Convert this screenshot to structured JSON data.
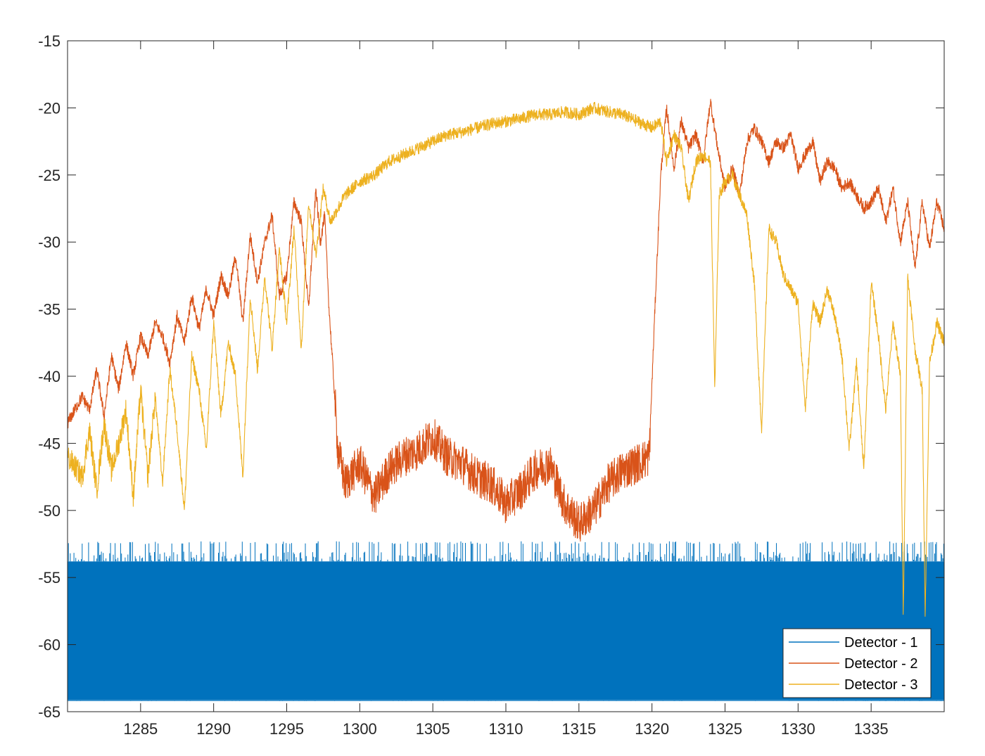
{
  "chart_data": {
    "type": "line",
    "title": "",
    "xlabel": "",
    "ylabel": "",
    "xlim": [
      1280,
      1340
    ],
    "ylim": [
      -65,
      -15
    ],
    "xticks": [
      1285,
      1290,
      1295,
      1300,
      1305,
      1310,
      1315,
      1320,
      1325,
      1330,
      1335
    ],
    "yticks": [
      -15,
      -20,
      -25,
      -30,
      -35,
      -40,
      -45,
      -50,
      -55,
      -60,
      -65
    ],
    "grid": false,
    "legend": {
      "position": "bottom-right",
      "entries": [
        "Detector - 1",
        "Detector - 2",
        "Detector - 3"
      ]
    },
    "series": [
      {
        "name": "Detector - 1",
        "color": "#0072BD",
        "style": "noise-band",
        "band_low": -64.2,
        "band_high": -53.8,
        "spike_high": -52.3,
        "x": [
          1280,
          1340
        ],
        "y": [
          -59,
          -59
        ]
      },
      {
        "name": "Detector - 2",
        "color": "#D95319",
        "x": [
          1280.0,
          1281.0,
          1281.5,
          1282.0,
          1282.5,
          1283.0,
          1283.5,
          1284.0,
          1284.5,
          1285.0,
          1285.5,
          1286.0,
          1286.5,
          1287.0,
          1287.5,
          1288.0,
          1288.5,
          1289.0,
          1289.5,
          1290.0,
          1290.5,
          1291.0,
          1291.5,
          1292.0,
          1292.5,
          1293.0,
          1293.5,
          1294.0,
          1294.5,
          1295.0,
          1295.5,
          1296.0,
          1296.5,
          1297.0,
          1297.3,
          1297.6,
          1297.9,
          1298.2,
          1298.5,
          1299.0,
          1300.0,
          1301.0,
          1302.0,
          1303.0,
          1304.0,
          1305.0,
          1306.0,
          1307.0,
          1308.0,
          1309.0,
          1310.0,
          1311.0,
          1312.0,
          1313.0,
          1314.0,
          1315.0,
          1316.0,
          1317.0,
          1318.0,
          1319.0,
          1319.8,
          1320.2,
          1320.6,
          1321.0,
          1321.5,
          1322.0,
          1322.5,
          1323.0,
          1323.5,
          1324.0,
          1324.5,
          1325.0,
          1325.5,
          1326.0,
          1326.5,
          1327.0,
          1327.5,
          1328.0,
          1328.5,
          1329.0,
          1329.5,
          1330.0,
          1330.5,
          1331.0,
          1331.5,
          1332.0,
          1332.5,
          1333.0,
          1333.5,
          1334.0,
          1334.5,
          1335.0,
          1335.5,
          1336.0,
          1336.5,
          1337.0,
          1337.5,
          1338.0,
          1338.5,
          1339.0,
          1339.5,
          1340.0
        ],
        "y": [
          -43.5,
          -41.5,
          -42.5,
          -39.5,
          -43.0,
          -38.5,
          -41.0,
          -37.5,
          -40.0,
          -37.0,
          -38.5,
          -36.0,
          -37.0,
          -39.0,
          -35.5,
          -37.5,
          -34.0,
          -36.5,
          -33.5,
          -35.5,
          -32.5,
          -34.0,
          -31.0,
          -36.0,
          -29.5,
          -33.0,
          -30.0,
          -28.0,
          -34.0,
          -32.5,
          -27.0,
          -28.5,
          -35.0,
          -26.0,
          -30.0,
          -28.0,
          -35.0,
          -40.0,
          -45.5,
          -48.0,
          -46.5,
          -49.0,
          -47.0,
          -46.0,
          -45.5,
          -44.5,
          -46.0,
          -46.5,
          -47.5,
          -48.0,
          -49.5,
          -48.5,
          -47.0,
          -46.5,
          -49.5,
          -51.0,
          -50.0,
          -48.0,
          -47.0,
          -46.5,
          -46.0,
          -35.0,
          -25.0,
          -20.0,
          -24.5,
          -21.0,
          -23.0,
          -22.0,
          -24.0,
          -19.5,
          -23.0,
          -26.0,
          -24.5,
          -26.5,
          -22.5,
          -21.5,
          -22.5,
          -24.0,
          -22.5,
          -23.0,
          -22.0,
          -24.5,
          -23.5,
          -22.5,
          -25.5,
          -24.0,
          -24.5,
          -26.0,
          -25.5,
          -26.5,
          -27.5,
          -27.0,
          -26.0,
          -28.5,
          -26.0,
          -30.0,
          -27.0,
          -32.0,
          -27.0,
          -30.5,
          -27.0,
          -29.0
        ]
      },
      {
        "name": "Detector - 3",
        "color": "#EDB120",
        "x": [
          1280.0,
          1281.0,
          1281.5,
          1282.0,
          1282.5,
          1283.0,
          1283.5,
          1284.0,
          1284.5,
          1285.0,
          1285.5,
          1286.0,
          1286.5,
          1287.0,
          1287.5,
          1288.0,
          1288.5,
          1289.0,
          1289.5,
          1290.0,
          1290.5,
          1291.0,
          1291.5,
          1292.0,
          1292.5,
          1293.0,
          1293.5,
          1294.0,
          1294.5,
          1295.0,
          1295.5,
          1296.0,
          1296.5,
          1297.0,
          1297.5,
          1298.0,
          1299.0,
          1300.0,
          1301.0,
          1302.0,
          1303.0,
          1304.0,
          1305.0,
          1306.0,
          1307.0,
          1308.0,
          1309.0,
          1310.0,
          1311.0,
          1312.0,
          1313.0,
          1314.0,
          1315.0,
          1316.0,
          1317.0,
          1318.0,
          1319.0,
          1320.0,
          1320.6,
          1321.0,
          1321.5,
          1322.0,
          1322.5,
          1323.0,
          1323.5,
          1324.0,
          1324.3,
          1324.6,
          1325.0,
          1325.5,
          1326.0,
          1326.5,
          1327.0,
          1327.5,
          1328.0,
          1328.5,
          1329.0,
          1329.5,
          1330.0,
          1330.5,
          1331.0,
          1331.5,
          1332.0,
          1332.5,
          1333.0,
          1333.5,
          1334.0,
          1334.5,
          1335.0,
          1335.5,
          1336.0,
          1336.5,
          1337.0,
          1337.2,
          1337.5,
          1338.0,
          1338.5,
          1338.7,
          1339.0,
          1339.5,
          1340.0
        ],
        "y": [
          -46.0,
          -47.5,
          -44.0,
          -48.5,
          -43.5,
          -47.0,
          -45.0,
          -42.5,
          -49.0,
          -41.0,
          -47.5,
          -41.5,
          -48.0,
          -39.5,
          -44.0,
          -50.0,
          -38.5,
          -41.0,
          -45.5,
          -36.0,
          -43.0,
          -37.5,
          -40.0,
          -47.5,
          -34.0,
          -39.5,
          -32.5,
          -38.0,
          -30.5,
          -36.0,
          -29.0,
          -38.0,
          -27.0,
          -31.0,
          -26.0,
          -28.5,
          -26.5,
          -25.5,
          -25.0,
          -24.0,
          -23.5,
          -23.0,
          -22.5,
          -22.0,
          -21.8,
          -21.5,
          -21.2,
          -21.0,
          -20.8,
          -20.5,
          -20.5,
          -20.3,
          -20.5,
          -20.0,
          -20.3,
          -20.5,
          -21.0,
          -21.5,
          -21.0,
          -24.0,
          -22.0,
          -23.0,
          -27.0,
          -24.0,
          -23.5,
          -24.0,
          -41.0,
          -26.5,
          -25.5,
          -25.0,
          -26.5,
          -28.0,
          -33.0,
          -44.0,
          -29.0,
          -30.0,
          -32.5,
          -33.5,
          -34.5,
          -42.5,
          -34.5,
          -36.0,
          -33.5,
          -35.5,
          -38.5,
          -45.5,
          -39.0,
          -47.0,
          -33.0,
          -37.0,
          -42.5,
          -36.0,
          -40.0,
          -58.0,
          -32.5,
          -38.0,
          -41.0,
          -58.0,
          -39.0,
          -36.0,
          -37.5
        ]
      }
    ]
  }
}
